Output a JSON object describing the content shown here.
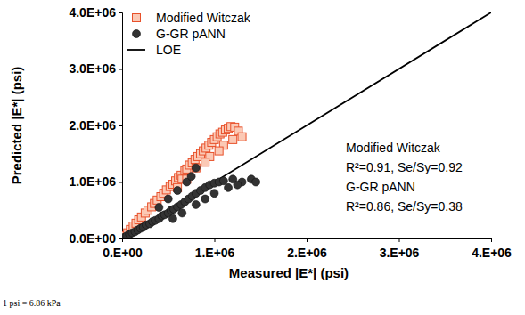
{
  "chart_data": {
    "type": "scatter",
    "x_label": "Measured |E*| (psi)",
    "y_label": "Predicted |E*| (psi)",
    "xlim": [
      0,
      4000000
    ],
    "ylim": [
      0,
      4000000
    ],
    "xticks": [
      {
        "value": 0,
        "label": "0.E+00"
      },
      {
        "value": 1000000,
        "label": "1.E+06"
      },
      {
        "value": 2000000,
        "label": "2.E+06"
      },
      {
        "value": 3000000,
        "label": "3.E+06"
      },
      {
        "value": 4000000,
        "label": "4.E+06"
      }
    ],
    "yticks": [
      {
        "value": 0,
        "label": "0.0E+00"
      },
      {
        "value": 1000000,
        "label": "1.0E+06"
      },
      {
        "value": 2000000,
        "label": "2.0E+06"
      },
      {
        "value": 3000000,
        "label": "3.0E+06"
      },
      {
        "value": 4000000,
        "label": "4.0E+06"
      }
    ],
    "grid": false,
    "legend": "upper left",
    "series": [
      {
        "name": "Modified Witczak",
        "type": "scatter",
        "marker": "square",
        "color": "#e8502a",
        "x": [
          30000,
          60000,
          90000,
          120000,
          150000,
          180000,
          210000,
          250000,
          280000,
          320000,
          350000,
          380000,
          420000,
          450000,
          480000,
          520000,
          550000,
          580000,
          610000,
          640000,
          680000,
          700000,
          730000,
          760000,
          790000,
          820000,
          850000,
          880000,
          910000,
          940000,
          970000,
          1000000,
          1030000,
          1060000,
          1090000,
          1120000,
          1150000,
          1180000,
          1220000,
          1260000,
          1300000,
          1100000,
          950000,
          800000,
          650000,
          1200000,
          900000,
          700000,
          1050000,
          600000
        ],
        "values": [
          50000,
          100000,
          160000,
          220000,
          270000,
          330000,
          380000,
          450000,
          500000,
          560000,
          620000,
          680000,
          740000,
          800000,
          860000,
          920000,
          960000,
          1020000,
          1080000,
          1120000,
          1200000,
          1230000,
          1300000,
          1340000,
          1400000,
          1450000,
          1500000,
          1550000,
          1600000,
          1650000,
          1700000,
          1750000,
          1800000,
          1850000,
          1880000,
          1920000,
          1950000,
          1980000,
          1970000,
          1900000,
          1800000,
          1650000,
          1450000,
          1250000,
          1050000,
          1750000,
          1350000,
          1050000,
          1550000,
          900000
        ]
      },
      {
        "name": "G-GR pANN",
        "type": "scatter",
        "marker": "circle",
        "color": "#333333",
        "x": [
          20000,
          50000,
          80000,
          110000,
          140000,
          170000,
          200000,
          230000,
          260000,
          300000,
          330000,
          360000,
          400000,
          430000,
          460000,
          500000,
          530000,
          560000,
          600000,
          640000,
          680000,
          720000,
          760000,
          800000,
          850000,
          900000,
          950000,
          1000000,
          1050000,
          1100000,
          1200000,
          1300000,
          1400000,
          1450000,
          700000,
          750000,
          800000,
          600000,
          500000,
          400000,
          900000,
          1000000,
          1150000,
          1250000,
          800000,
          650000,
          550000
        ],
        "values": [
          20000,
          45000,
          75000,
          100000,
          120000,
          150000,
          180000,
          200000,
          240000,
          260000,
          300000,
          320000,
          350000,
          400000,
          420000,
          450000,
          500000,
          520000,
          560000,
          600000,
          650000,
          700000,
          750000,
          800000,
          850000,
          900000,
          950000,
          980000,
          1000000,
          1020000,
          1050000,
          1000000,
          1050000,
          1000000,
          1000000,
          1100000,
          1250000,
          850000,
          700000,
          550000,
          700000,
          800000,
          900000,
          950000,
          600000,
          450000,
          350000
        ]
      },
      {
        "name": "LOE",
        "type": "line",
        "line_style": "solid",
        "color": "#000000",
        "x": [
          0,
          4000000
        ],
        "values": [
          0,
          4000000
        ]
      }
    ],
    "annotations": [
      "Modified Witczak",
      "R²=0.91, Se/Sy=0.92",
      "G-GR pANN",
      "R²=0.86, Se/Sy=0.38"
    ],
    "footnote": "1 psi = 6.86 kPa"
  }
}
